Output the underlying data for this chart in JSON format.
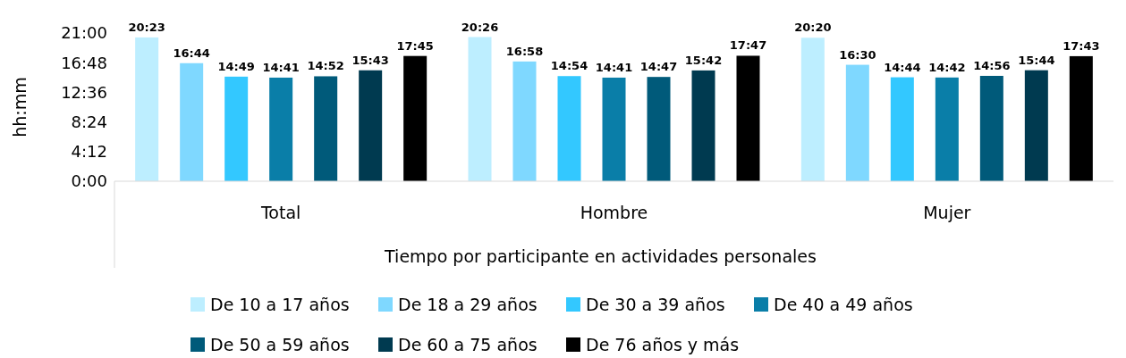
{
  "chart_data": {
    "type": "bar",
    "xlabel": "Tiempo por participante en actividades personales",
    "ylabel": "hh:mm",
    "categories": [
      "Total",
      "Hombre",
      "Mujer"
    ],
    "ylim": [
      0,
      21
    ],
    "yticks": [
      {
        "value": 0,
        "label": "0:00"
      },
      {
        "value": 4.2,
        "label": "4:12"
      },
      {
        "value": 8.4,
        "label": "8:24"
      },
      {
        "value": 12.6,
        "label": "12:36"
      },
      {
        "value": 16.8,
        "label": "16:48"
      },
      {
        "value": 21,
        "label": "21:00"
      }
    ],
    "grid": false,
    "legend": "bottom",
    "series": [
      {
        "name": "De 10 a 17 años",
        "color": "#bdeeff",
        "values": [
          20.38,
          20.43,
          20.33
        ],
        "value_labels": [
          "20:23",
          "20:26",
          "20:20"
        ]
      },
      {
        "name": "De 18 a 29 años",
        "color": "#7fd8ff",
        "values": [
          16.73,
          16.97,
          16.5
        ],
        "value_labels": [
          "16:44",
          "16:58",
          "16:30"
        ]
      },
      {
        "name": "De 30 a 39 años",
        "color": "#33c8ff",
        "values": [
          14.82,
          14.9,
          14.73
        ],
        "value_labels": [
          "14:49",
          "14:54",
          "14:44"
        ]
      },
      {
        "name": "De 40 a 49 años",
        "color": "#0a7ea8",
        "values": [
          14.68,
          14.68,
          14.7
        ],
        "value_labels": [
          "14:41",
          "14:41",
          "14:42"
        ]
      },
      {
        "name": "De 50 a 59 años",
        "color": "#005a7a",
        "values": [
          14.87,
          14.78,
          14.93
        ],
        "value_labels": [
          "14:52",
          "14:47",
          "14:56"
        ]
      },
      {
        "name": "De 60 a 75 años",
        "color": "#003a50",
        "values": [
          15.72,
          15.7,
          15.73
        ],
        "value_labels": [
          "15:43",
          "15:42",
          "15:44"
        ]
      },
      {
        "name": "De 76 años y más",
        "color": "#000000",
        "values": [
          17.75,
          17.78,
          17.72
        ],
        "value_labels": [
          "17:45",
          "17:47",
          "17:43"
        ]
      }
    ]
  }
}
